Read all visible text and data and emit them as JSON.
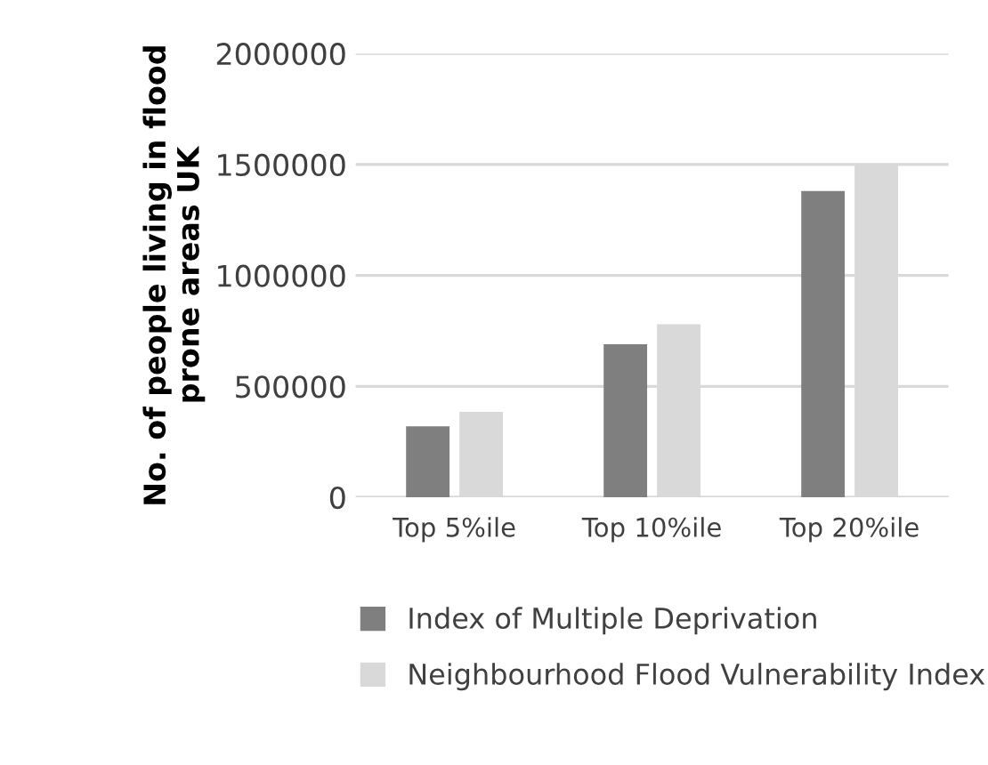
{
  "chart_data": {
    "type": "bar",
    "ylabel": "No. of people living in flood prone areas UK",
    "categories": [
      "Top 5%ile",
      "Top 10%ile",
      "Top 20%ile"
    ],
    "series": [
      {
        "name": "Index of Multiple Deprivation",
        "color": "#7f7f7f",
        "values": [
          320000,
          690000,
          1380000
        ]
      },
      {
        "name": "Neighbourhood Flood Vulnerability Index",
        "color": "#d9d9d9",
        "values": [
          385000,
          780000,
          1500000
        ]
      }
    ],
    "ylim": [
      0,
      2000000
    ],
    "yticks": [
      0,
      500000,
      1000000,
      1500000,
      2000000
    ],
    "grid": "y",
    "legend": "bottom"
  }
}
